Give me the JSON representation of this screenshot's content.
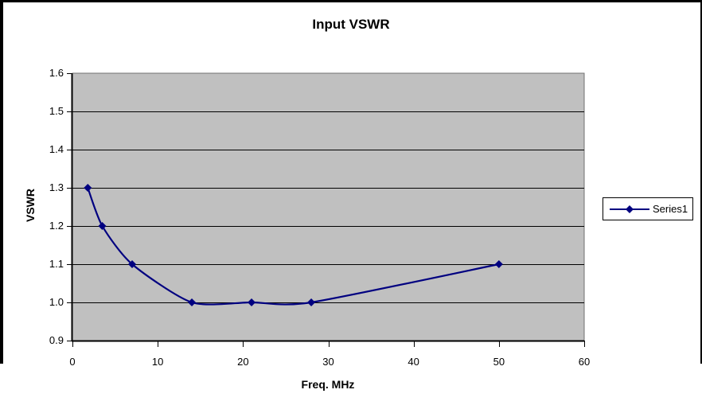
{
  "chart_title": "Input VSWR",
  "legend": {
    "entries": [
      "Series1"
    ]
  },
  "chart_data": {
    "type": "line",
    "title": "Input VSWR",
    "xlabel": "Freq. MHz",
    "ylabel": "VSWR",
    "series": [
      {
        "name": "Series1",
        "x": [
          1.8,
          3.5,
          7,
          14,
          21,
          28,
          50
        ],
        "y": [
          1.3,
          1.2,
          1.1,
          1.0,
          1.0,
          1.0,
          1.1
        ],
        "marker": "diamond",
        "smoothed": true
      }
    ],
    "xlim": [
      0,
      60
    ],
    "ylim": [
      0.9,
      1.6
    ],
    "x_ticks": [
      0,
      10,
      20,
      30,
      40,
      50,
      60
    ],
    "x_tick_labels": [
      "0",
      "10",
      "20",
      "30",
      "40",
      "50",
      "60"
    ],
    "y_ticks": [
      0.9,
      1.0,
      1.1,
      1.2,
      1.3,
      1.4,
      1.5,
      1.6
    ],
    "y_tick_labels": [
      "0.9",
      "1.0",
      "1.1",
      "1.2",
      "1.3",
      "1.4",
      "1.5",
      "1.6"
    ],
    "grid": "horizontal",
    "legend_position": "right",
    "colors": {
      "series": "#000080",
      "plot_bg": "#c0c0c0",
      "gridline": "#000000",
      "axis": "#000000",
      "plot_border": "#707070",
      "frame_border": "#000000",
      "text": "#000000"
    }
  }
}
